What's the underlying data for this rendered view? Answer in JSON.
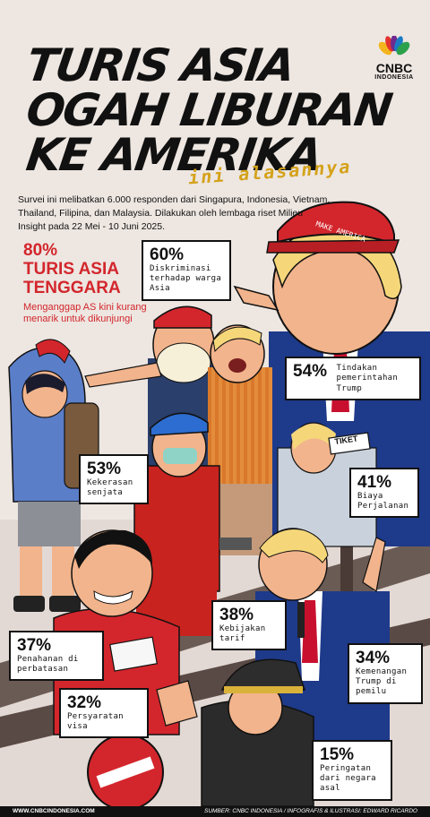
{
  "title": {
    "line1": "TURIS ASIA",
    "line2": "OGAH LIBURAN",
    "line3": "KE AMERIKA",
    "subtitle": "ini alasannya"
  },
  "brand": {
    "name": "CNBC",
    "country": "INDONESIA"
  },
  "intro": "Survei ini melibatkan 6.000 responden dari Singapura, Indonesia, Vietnam, Thailand, Filipina, dan Malaysia. Dilakukan oleh lembaga riset Milieu Insight pada 22 Mei - 10 Juni 2025.",
  "headline_stat": {
    "pct": "80%",
    "group_line1": "TURIS ASIA",
    "group_line2": "TENGGARA",
    "desc": "Menganggap AS kini kurang menarik untuk dikunjungi"
  },
  "art_text": {
    "cap": "MAKE AMERICA",
    "ticket": "TIKET"
  },
  "reasons": [
    {
      "pct": "60%",
      "label": "Diskriminasi terhadap warga Asia"
    },
    {
      "pct": "54%",
      "label": "Tindakan pemerintahan Trump"
    },
    {
      "pct": "53%",
      "label": "Kekerasan senjata"
    },
    {
      "pct": "41%",
      "label": "Biaya Perjalanan"
    },
    {
      "pct": "38%",
      "label": "Kebijakan tarif"
    },
    {
      "pct": "37%",
      "label": "Penahanan di perbatasan"
    },
    {
      "pct": "34%",
      "label": "Kemenangan Trump di pemilu"
    },
    {
      "pct": "32%",
      "label": "Persyaratan visa"
    },
    {
      "pct": "15%",
      "label": "Peringatan dari negara asal"
    }
  ],
  "footer": {
    "site": "WWW.CNBCINDONESIA.COM",
    "credit": "SUMBER: CNBC INDONESIA / INFOGRAFIS & ILUSTRASI: EDWARD RICARDO"
  }
}
